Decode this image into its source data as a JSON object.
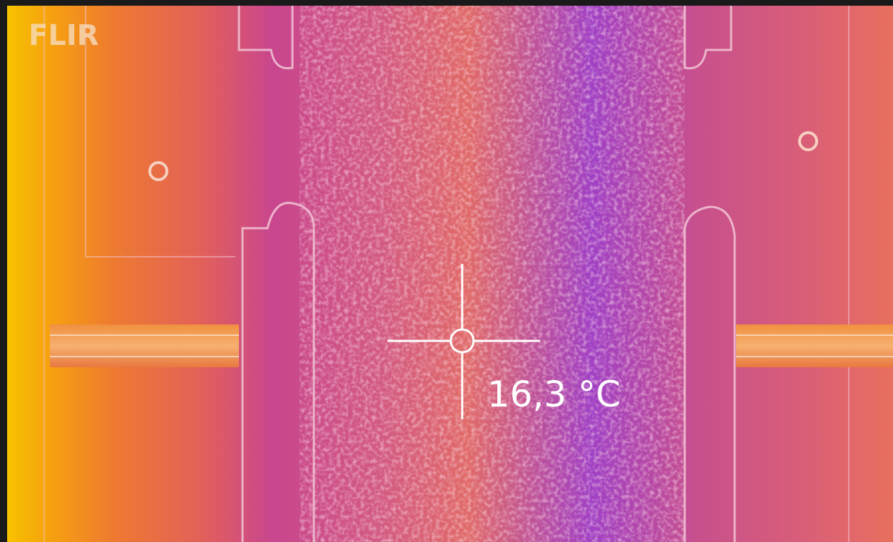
{
  "brand": "FLIR",
  "reading": "16,3 °C"
}
